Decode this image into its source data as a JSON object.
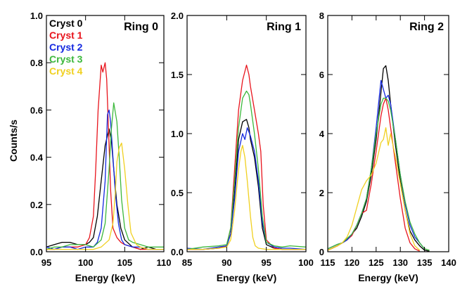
{
  "figure": {
    "ylabel": "Counts/s",
    "legend": [
      {
        "label": "Cryst 0",
        "color": "#000000"
      },
      {
        "label": "Cryst 1",
        "color": "#e8141c"
      },
      {
        "label": "Cryst 2",
        "color": "#1428e0"
      },
      {
        "label": "Cryst 3",
        "color": "#3cb83c"
      },
      {
        "label": "Cryst 4",
        "color": "#f0d020"
      }
    ]
  },
  "chart_data": [
    {
      "type": "line",
      "title": "Ring 0",
      "xlabel": "Energy (keV)",
      "ylabel": "Counts/s",
      "xlim": [
        95,
        110
      ],
      "ylim": [
        0,
        1.0
      ],
      "xticks": [
        "95",
        "100",
        "105",
        "110"
      ],
      "yticks": [
        "0.0",
        "0.2",
        "0.4",
        "0.6",
        "0.8",
        "1.0"
      ],
      "legend_position": "top-left",
      "series": [
        {
          "name": "Cryst 0",
          "color": "#000000",
          "x": [
            95,
            96,
            97,
            98,
            99,
            100,
            100.5,
            101,
            101.5,
            102,
            102.5,
            103,
            103.3,
            103.6,
            104,
            104.5,
            105,
            106,
            107,
            108,
            109,
            110
          ],
          "y": [
            0.02,
            0.03,
            0.04,
            0.04,
            0.03,
            0.03,
            0.04,
            0.06,
            0.15,
            0.3,
            0.45,
            0.52,
            0.47,
            0.35,
            0.2,
            0.1,
            0.05,
            0.02,
            0.01,
            0.02,
            0.01,
            0.01
          ]
        },
        {
          "name": "Cryst 1",
          "color": "#e8141c",
          "x": [
            95,
            96,
            97,
            98,
            99,
            100,
            100.5,
            101,
            101.3,
            101.6,
            102,
            102.2,
            102.5,
            102.7,
            103,
            103.2,
            103.5,
            104,
            104.5,
            105,
            106,
            107,
            108,
            109,
            110
          ],
          "y": [
            0.01,
            0.01,
            0.02,
            0.02,
            0.02,
            0.03,
            0.06,
            0.15,
            0.35,
            0.6,
            0.79,
            0.76,
            0.8,
            0.73,
            0.45,
            0.26,
            0.1,
            0.06,
            0.04,
            0.03,
            0.02,
            0.01,
            0.01,
            0.01,
            0.01
          ]
        },
        {
          "name": "Cryst 2",
          "color": "#1428e0",
          "x": [
            95,
            96,
            97,
            98,
            99,
            100,
            101,
            101.5,
            102,
            102.5,
            102.8,
            103,
            103.2,
            103.5,
            103.8,
            104.2,
            104.6,
            105,
            106,
            107,
            108,
            109,
            110
          ],
          "y": [
            0.02,
            0.01,
            0.02,
            0.02,
            0.01,
            0.02,
            0.02,
            0.04,
            0.1,
            0.3,
            0.58,
            0.6,
            0.55,
            0.4,
            0.25,
            0.12,
            0.05,
            0.03,
            0.02,
            0.02,
            0.01,
            0.01,
            0.01
          ]
        },
        {
          "name": "Cryst 3",
          "color": "#3cb83c",
          "x": [
            95,
            96,
            97,
            98,
            99,
            100,
            101,
            102,
            102.5,
            103,
            103.3,
            103.6,
            104,
            104.3,
            104.6,
            105,
            105.5,
            106,
            107,
            108,
            109,
            110
          ],
          "y": [
            0.01,
            0.02,
            0.02,
            0.03,
            0.03,
            0.03,
            0.02,
            0.05,
            0.12,
            0.35,
            0.52,
            0.63,
            0.55,
            0.4,
            0.22,
            0.1,
            0.05,
            0.04,
            0.03,
            0.02,
            0.02,
            0.02
          ]
        },
        {
          "name": "Cryst 4",
          "color": "#f0d020",
          "x": [
            95,
            96,
            97,
            98,
            99,
            100,
            101,
            102,
            103,
            103.5,
            103.8,
            104,
            104.3,
            104.6,
            105,
            105.4,
            105.8,
            106.5,
            107,
            108,
            109,
            110
          ],
          "y": [
            0.01,
            0.01,
            0.01,
            0.01,
            0.01,
            0.01,
            0.01,
            0.02,
            0.05,
            0.12,
            0.25,
            0.38,
            0.44,
            0.46,
            0.35,
            0.2,
            0.08,
            0.03,
            0.02,
            0.01,
            0.01,
            0.01
          ]
        }
      ]
    },
    {
      "type": "line",
      "title": "Ring 1",
      "xlabel": "Energy (keV)",
      "xlim": [
        85,
        100
      ],
      "ylim": [
        0,
        2.0
      ],
      "xticks": [
        "85",
        "90",
        "95",
        "100"
      ],
      "yticks": [
        "0.0",
        "0.5",
        "1.0",
        "1.5",
        "2.0"
      ],
      "series": [
        {
          "name": "Cryst 0",
          "color": "#000000",
          "x": [
            85,
            87,
            89,
            90,
            90.5,
            91,
            91.5,
            92,
            92.5,
            92.8,
            93,
            93.5,
            94,
            94.5,
            95,
            96,
            97,
            98,
            100
          ],
          "y": [
            0.02,
            0.02,
            0.03,
            0.05,
            0.15,
            0.5,
            0.95,
            1.1,
            1.12,
            1.05,
            0.95,
            0.8,
            0.55,
            0.2,
            0.06,
            0.03,
            0.02,
            0.02,
            0.02
          ]
        },
        {
          "name": "Cryst 1",
          "color": "#e8141c",
          "x": [
            85,
            87,
            89,
            90,
            90.5,
            91,
            91.5,
            92,
            92.5,
            92.8,
            93,
            93.5,
            94,
            94.3,
            94.6,
            95,
            96,
            97,
            98,
            100
          ],
          "y": [
            0.02,
            0.02,
            0.03,
            0.05,
            0.2,
            0.7,
            1.2,
            1.45,
            1.58,
            1.5,
            1.4,
            1.2,
            1.0,
            0.85,
            0.4,
            0.1,
            0.03,
            0.02,
            0.02,
            0.02
          ]
        },
        {
          "name": "Cryst 2",
          "color": "#1428e0",
          "x": [
            85,
            87,
            89,
            90,
            90.5,
            91,
            91.5,
            92,
            92.3,
            92.6,
            93,
            93.5,
            94,
            94.5,
            95,
            96,
            97,
            98,
            100
          ],
          "y": [
            0.03,
            0.02,
            0.04,
            0.05,
            0.15,
            0.45,
            0.85,
            1.0,
            0.95,
            1.05,
            0.98,
            0.85,
            0.6,
            0.25,
            0.08,
            0.04,
            0.03,
            0.03,
            0.02
          ]
        },
        {
          "name": "Cryst 3",
          "color": "#3cb83c",
          "x": [
            85,
            87,
            89,
            90,
            90.5,
            91,
            91.5,
            92,
            92.5,
            92.8,
            93,
            93.5,
            94,
            94.5,
            95,
            96,
            97,
            98,
            100
          ],
          "y": [
            0.02,
            0.04,
            0.05,
            0.06,
            0.2,
            0.6,
            1.05,
            1.3,
            1.36,
            1.33,
            1.25,
            1.0,
            0.7,
            0.3,
            0.08,
            0.05,
            0.04,
            0.05,
            0.04
          ]
        },
        {
          "name": "Cryst 4",
          "color": "#f0d020",
          "x": [
            85,
            87,
            89,
            90,
            90.5,
            91,
            91.5,
            91.8,
            92,
            92.3,
            92.6,
            93,
            93.3,
            93.6,
            94,
            95,
            96,
            97,
            98,
            100
          ],
          "y": [
            0.02,
            0.02,
            0.03,
            0.04,
            0.1,
            0.35,
            0.7,
            0.85,
            0.9,
            0.8,
            0.6,
            0.3,
            0.12,
            0.05,
            0.03,
            0.02,
            0.02,
            0.02,
            0.02,
            0.02
          ]
        }
      ]
    },
    {
      "type": "line",
      "title": "Ring 2",
      "xlabel": "Energy (keV)",
      "xlim": [
        115,
        140
      ],
      "ylim": [
        0,
        8
      ],
      "xticks": [
        "115",
        "120",
        "125",
        "130",
        "135",
        "140"
      ],
      "yticks": [
        "0",
        "2",
        "4",
        "6",
        "8"
      ],
      "series": [
        {
          "name": "Cryst 0",
          "color": "#000000",
          "x": [
            115,
            117,
            118,
            119,
            120,
            121,
            122,
            123,
            124,
            125,
            126,
            126.5,
            127,
            127.5,
            128,
            129,
            130,
            131,
            132,
            133,
            134,
            135,
            136
          ],
          "y": [
            0.05,
            0.2,
            0.3,
            0.4,
            0.6,
            0.8,
            1.2,
            1.7,
            2.6,
            3.8,
            5.4,
            6.2,
            6.3,
            5.8,
            5.0,
            3.6,
            2.4,
            1.4,
            0.7,
            0.4,
            0.2,
            0.05,
            0.02
          ]
        },
        {
          "name": "Cryst 1",
          "color": "#e8141c",
          "x": [
            115,
            117,
            118,
            119,
            120,
            121,
            122,
            123,
            124,
            125,
            126,
            126.5,
            127,
            127.5,
            128,
            129,
            130,
            131,
            132,
            133,
            134
          ],
          "y": [
            0.05,
            0.2,
            0.3,
            0.4,
            0.55,
            0.9,
            1.3,
            1.4,
            2.3,
            3.4,
            4.6,
            5.0,
            5.2,
            4.8,
            4.2,
            3.0,
            1.8,
            0.8,
            0.3,
            0.1,
            0.02
          ]
        },
        {
          "name": "Cryst 2",
          "color": "#1428e0",
          "x": [
            115,
            117,
            118,
            119,
            120,
            121,
            122,
            123,
            124,
            125,
            125.5,
            126,
            126.5,
            127,
            127.5,
            128,
            129,
            130,
            131,
            132,
            133,
            134,
            135
          ],
          "y": [
            0.1,
            0.25,
            0.3,
            0.4,
            0.6,
            0.9,
            1.3,
            1.8,
            2.8,
            4.2,
            5.0,
            5.8,
            5.5,
            5.2,
            5.3,
            5.0,
            3.8,
            2.6,
            1.6,
            0.9,
            0.5,
            0.3,
            0.1
          ]
        },
        {
          "name": "Cryst 3",
          "color": "#3cb83c",
          "x": [
            115,
            117,
            118,
            119,
            120,
            121,
            122,
            123,
            124,
            125,
            126,
            126.5,
            127,
            127.5,
            128,
            129,
            130,
            131,
            132,
            133,
            134,
            135,
            136
          ],
          "y": [
            0.1,
            0.25,
            0.3,
            0.45,
            0.6,
            0.9,
            1.3,
            1.8,
            2.8,
            4.0,
            5.0,
            5.2,
            5.2,
            5.1,
            4.8,
            3.8,
            2.6,
            1.7,
            1.0,
            0.6,
            0.3,
            0.1,
            0.05
          ]
        },
        {
          "name": "Cryst 4",
          "color": "#f0d020",
          "x": [
            115,
            117,
            118,
            119,
            120,
            121,
            121.5,
            122,
            123,
            124,
            125,
            126,
            126.5,
            127,
            127.5,
            128,
            129,
            130,
            131,
            132,
            133,
            134
          ],
          "y": [
            0.05,
            0.2,
            0.3,
            0.5,
            0.9,
            1.5,
            1.8,
            2.1,
            2.4,
            2.6,
            3.0,
            3.7,
            3.8,
            4.2,
            3.6,
            4.0,
            3.2,
            2.3,
            1.4,
            0.6,
            0.2,
            0.05
          ]
        }
      ]
    }
  ]
}
